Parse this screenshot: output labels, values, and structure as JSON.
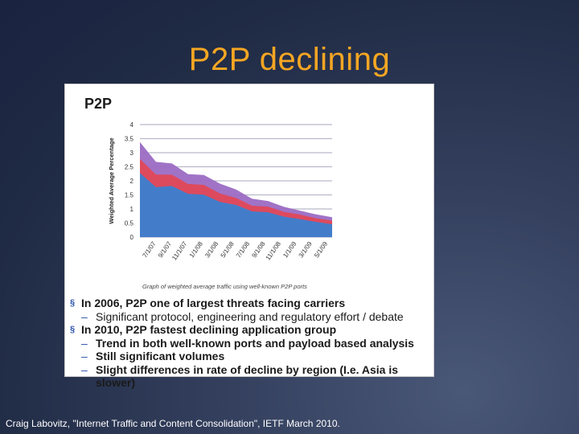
{
  "slide": {
    "title": "P2P declining",
    "footer": "Craig Labovitz, \"Internet Traffic and Content Consolidation\", IETF March 2010."
  },
  "figure": {
    "heading": "P2P",
    "bullets": [
      {
        "level": 1,
        "text": "In 2006, P2P one of largest threats facing carriers"
      },
      {
        "level": 2,
        "light": true,
        "text": "Significant protocol, engineering and regulatory effort / debate"
      },
      {
        "level": 1,
        "text": "In 2010, P2P fastest declining application group"
      },
      {
        "level": 2,
        "text": "Trend in both well-known ports and payload based analysis"
      },
      {
        "level": 2,
        "text": "Still significant volumes"
      },
      {
        "level": 2,
        "text": "Slight differences in rate of decline by region (I.e. Asia is slower)"
      }
    ]
  },
  "colors": {
    "title": "#f5a623",
    "series_blue": "#3a7fd0",
    "series_red": "#e04858",
    "series_purple": "#9b6bc4",
    "bullet_marker": "#2b52a8"
  },
  "chart_data": {
    "type": "area",
    "ylabel": "Weighted Average Percentage",
    "caption": "Graph of weighted average traffic using well-known P2P ports",
    "ylim": [
      0,
      4
    ],
    "yticks": [
      "0",
      "0.5",
      "1",
      "1.5",
      "2",
      "2.5",
      "3",
      "3.5",
      "4"
    ],
    "x_tick_labels": [
      "7/1/07",
      "9/1/07",
      "11/1/07",
      "1/1/08",
      "3/1/08",
      "5/1/08",
      "7/1/08",
      "9/1/08",
      "11/1/08",
      "1/1/09",
      "3/1/09",
      "5/1/09"
    ],
    "grid": true,
    "x": [
      "7/1/07",
      "9/1/07",
      "11/1/07",
      "1/1/08",
      "3/1/08",
      "5/1/08",
      "7/1/08",
      "9/1/08",
      "11/1/08",
      "1/1/09",
      "3/1/09",
      "5/1/09",
      "7/1/09"
    ],
    "series": [
      {
        "color": "#3a7fd0",
        "values": [
          2.2,
          1.85,
          1.75,
          1.6,
          1.45,
          1.3,
          1.1,
          0.95,
          0.85,
          0.75,
          0.62,
          0.55,
          0.45
        ]
      },
      {
        "color": "#e04858",
        "values": [
          2.7,
          2.3,
          2.15,
          1.95,
          1.8,
          1.6,
          1.35,
          1.15,
          1.05,
          0.92,
          0.78,
          0.68,
          0.58
        ]
      },
      {
        "color": "#9b6bc4",
        "values": [
          3.3,
          2.75,
          2.55,
          2.3,
          2.15,
          1.95,
          1.65,
          1.4,
          1.25,
          1.1,
          0.92,
          0.82,
          0.7
        ]
      }
    ]
  }
}
